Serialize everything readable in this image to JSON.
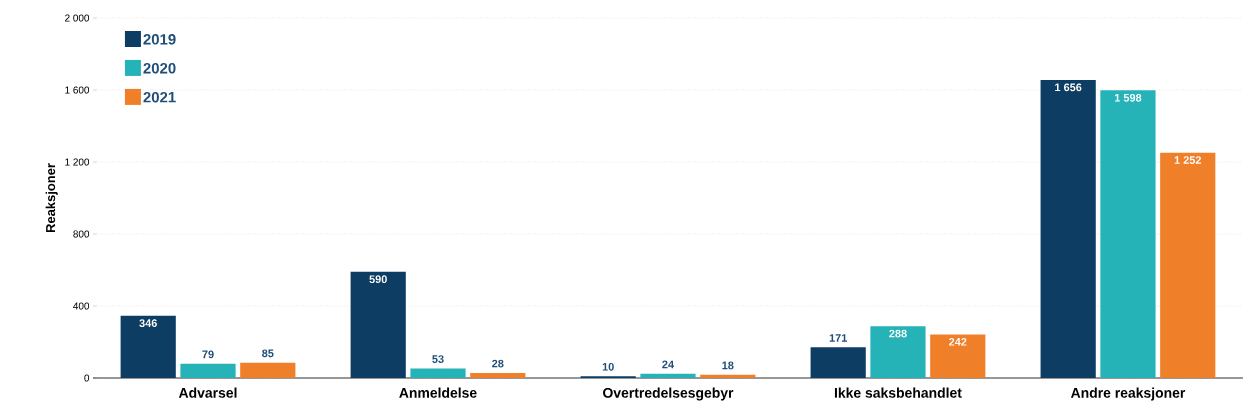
{
  "chart_data": {
    "type": "bar",
    "ylabel": "Reaksjoner",
    "categories": [
      "Advarsel",
      "Anmeldelse",
      "Overtredelsesgebyr",
      "Ikke saksbehandlet",
      "Andre reaksjoner"
    ],
    "series": [
      {
        "name": "2019",
        "color": "#0d3d63",
        "values": [
          346,
          590,
          10,
          171,
          1656
        ],
        "value_labels": [
          "346",
          "590",
          "10",
          "171",
          "1 656"
        ]
      },
      {
        "name": "2020",
        "color": "#26b3b8",
        "values": [
          79,
          53,
          24,
          288,
          1598
        ],
        "value_labels": [
          "79",
          "53",
          "24",
          "288",
          "1 598"
        ]
      },
      {
        "name": "2021",
        "color": "#f07f2a",
        "values": [
          85,
          28,
          18,
          242,
          1252
        ],
        "value_labels": [
          "85",
          "28",
          "18",
          "242",
          "1 252"
        ]
      }
    ],
    "ylim": [
      0,
      2000
    ],
    "yticks": [
      0,
      400,
      800,
      {
        "value": 1200,
        "label": "1 200"
      },
      {
        "value": 1600,
        "label": "1 600"
      },
      {
        "value": 2000,
        "label": "2 000"
      }
    ],
    "grid": "y",
    "legend": "top left"
  }
}
